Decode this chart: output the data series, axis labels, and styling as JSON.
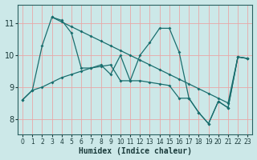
{
  "xlabel": "Humidex (Indice chaleur)",
  "xlim": [
    -0.5,
    23.5
  ],
  "ylim": [
    7.5,
    11.6
  ],
  "xticks": [
    0,
    1,
    2,
    3,
    4,
    5,
    6,
    7,
    8,
    9,
    10,
    11,
    12,
    13,
    14,
    15,
    16,
    17,
    18,
    19,
    20,
    21,
    22,
    23
  ],
  "yticks": [
    8,
    9,
    10,
    11
  ],
  "background_color": "#cce8e8",
  "line_color": "#1a6e6e",
  "grid_color": "#e8a8a8",
  "lines": [
    {
      "x": [
        0,
        1,
        2,
        3,
        4,
        5,
        6,
        7,
        8,
        9,
        10,
        11,
        12,
        13,
        14,
        15,
        16,
        17,
        18,
        19,
        20,
        21,
        22,
        23
      ],
      "y": [
        8.6,
        8.9,
        10.3,
        11.2,
        11.1,
        10.7,
        9.6,
        9.6,
        9.7,
        9.4,
        10.0,
        9.2,
        10.0,
        10.4,
        10.85,
        10.85,
        10.1,
        8.65,
        8.2,
        7.85,
        8.55,
        8.35,
        9.95,
        9.9
      ]
    },
    {
      "x": [
        3,
        4,
        5,
        6,
        7,
        8,
        9,
        10,
        11,
        12,
        13,
        14,
        15,
        16,
        17,
        18,
        19,
        20,
        21,
        22,
        23
      ],
      "y": [
        11.2,
        11.05,
        10.9,
        10.75,
        10.6,
        10.45,
        10.3,
        10.15,
        10.0,
        9.85,
        9.7,
        9.55,
        9.4,
        9.25,
        9.1,
        8.95,
        8.8,
        8.65,
        8.5,
        9.95,
        9.9
      ]
    },
    {
      "x": [
        0,
        1,
        2,
        3,
        4,
        5,
        6,
        7,
        8,
        9,
        10,
        11,
        12,
        13,
        14,
        15,
        16,
        17,
        18,
        19,
        20,
        21,
        22,
        23
      ],
      "y": [
        8.6,
        8.9,
        9.0,
        9.15,
        9.3,
        9.4,
        9.5,
        9.6,
        9.65,
        9.7,
        9.2,
        9.2,
        9.2,
        9.15,
        9.1,
        9.05,
        8.65,
        8.65,
        8.2,
        7.85,
        8.55,
        8.35,
        9.95,
        9.9
      ]
    }
  ]
}
